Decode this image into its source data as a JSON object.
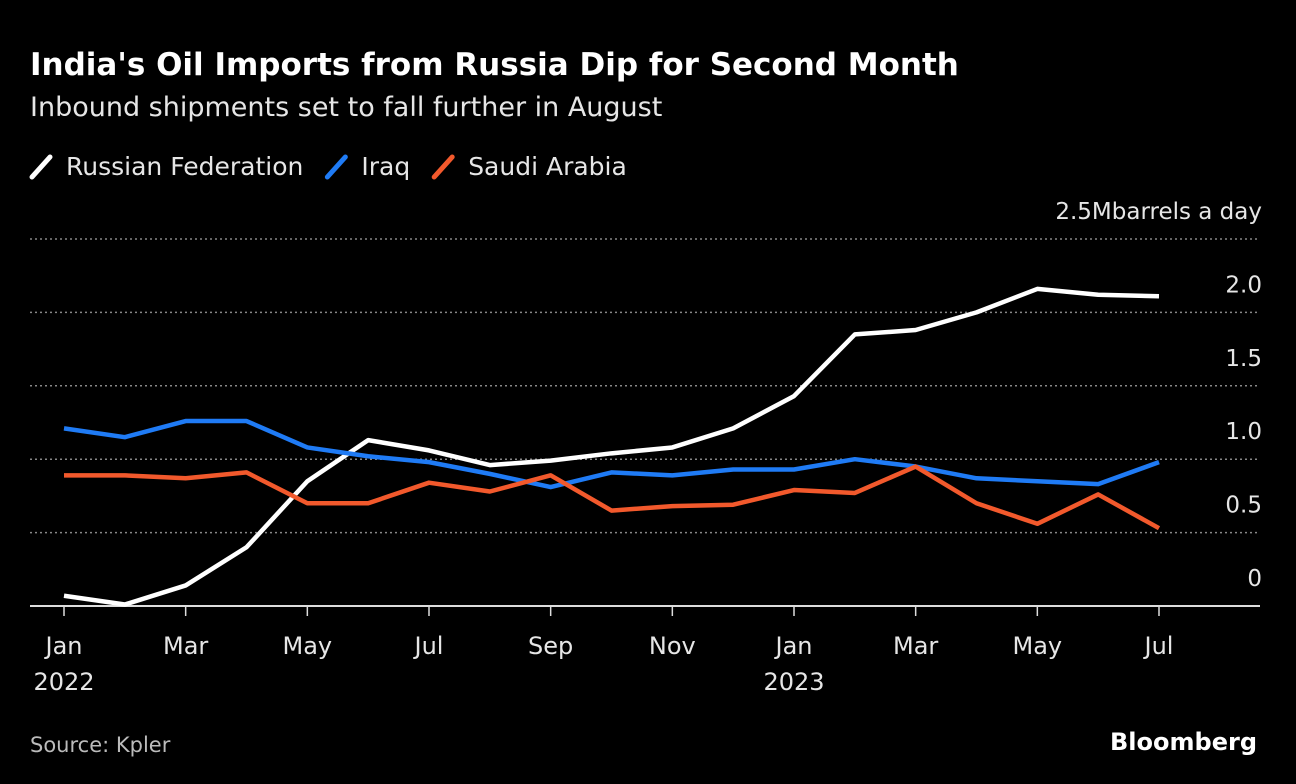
{
  "chart_data": {
    "type": "line",
    "title": "India's Oil Imports from Russia Dip for Second Month",
    "subtitle": "Inbound shipments set to fall further in August",
    "categories": [
      "Jan 2022",
      null,
      "Mar",
      null,
      "May",
      null,
      "Jul",
      null,
      "Sep",
      null,
      "Nov",
      null,
      "Jan 2023",
      null,
      "Mar",
      null,
      "May",
      null,
      "Jul"
    ],
    "series": [
      {
        "name": "Russian Federation",
        "color": "#ffffff",
        "values": [
          0.07,
          0.01,
          0.14,
          0.4,
          0.85,
          1.13,
          1.06,
          0.96,
          0.99,
          1.04,
          1.08,
          1.21,
          1.43,
          1.85,
          1.88,
          2.0,
          2.16,
          2.12,
          2.11
        ]
      },
      {
        "name": "Iraq",
        "color": "#1f7bf5",
        "values": [
          1.21,
          1.15,
          1.26,
          1.26,
          1.08,
          1.02,
          0.98,
          0.9,
          0.81,
          0.91,
          0.89,
          0.93,
          0.93,
          1.0,
          0.95,
          0.87,
          0.85,
          0.83,
          0.98
        ]
      },
      {
        "name": "Saudi Arabia",
        "color": "#f2592c",
        "values": [
          0.89,
          0.89,
          0.87,
          0.91,
          0.7,
          0.7,
          0.84,
          0.78,
          0.89,
          0.65,
          0.68,
          0.69,
          0.79,
          0.77,
          0.95,
          0.7,
          0.56,
          0.76,
          0.53
        ]
      }
    ],
    "ylim": [
      0,
      2.5
    ],
    "yticks": [
      0,
      0.5,
      {
        "value": 1,
        "label": "1.0"
      },
      1.5,
      {
        "value": 2,
        "label": "2.0"
      },
      {
        "value": 2.5,
        "label": "2.5M"
      }
    ],
    "y_unit": "barrels a day",
    "grid": true,
    "source": "Source: Kpler",
    "brand": "Bloomberg"
  }
}
